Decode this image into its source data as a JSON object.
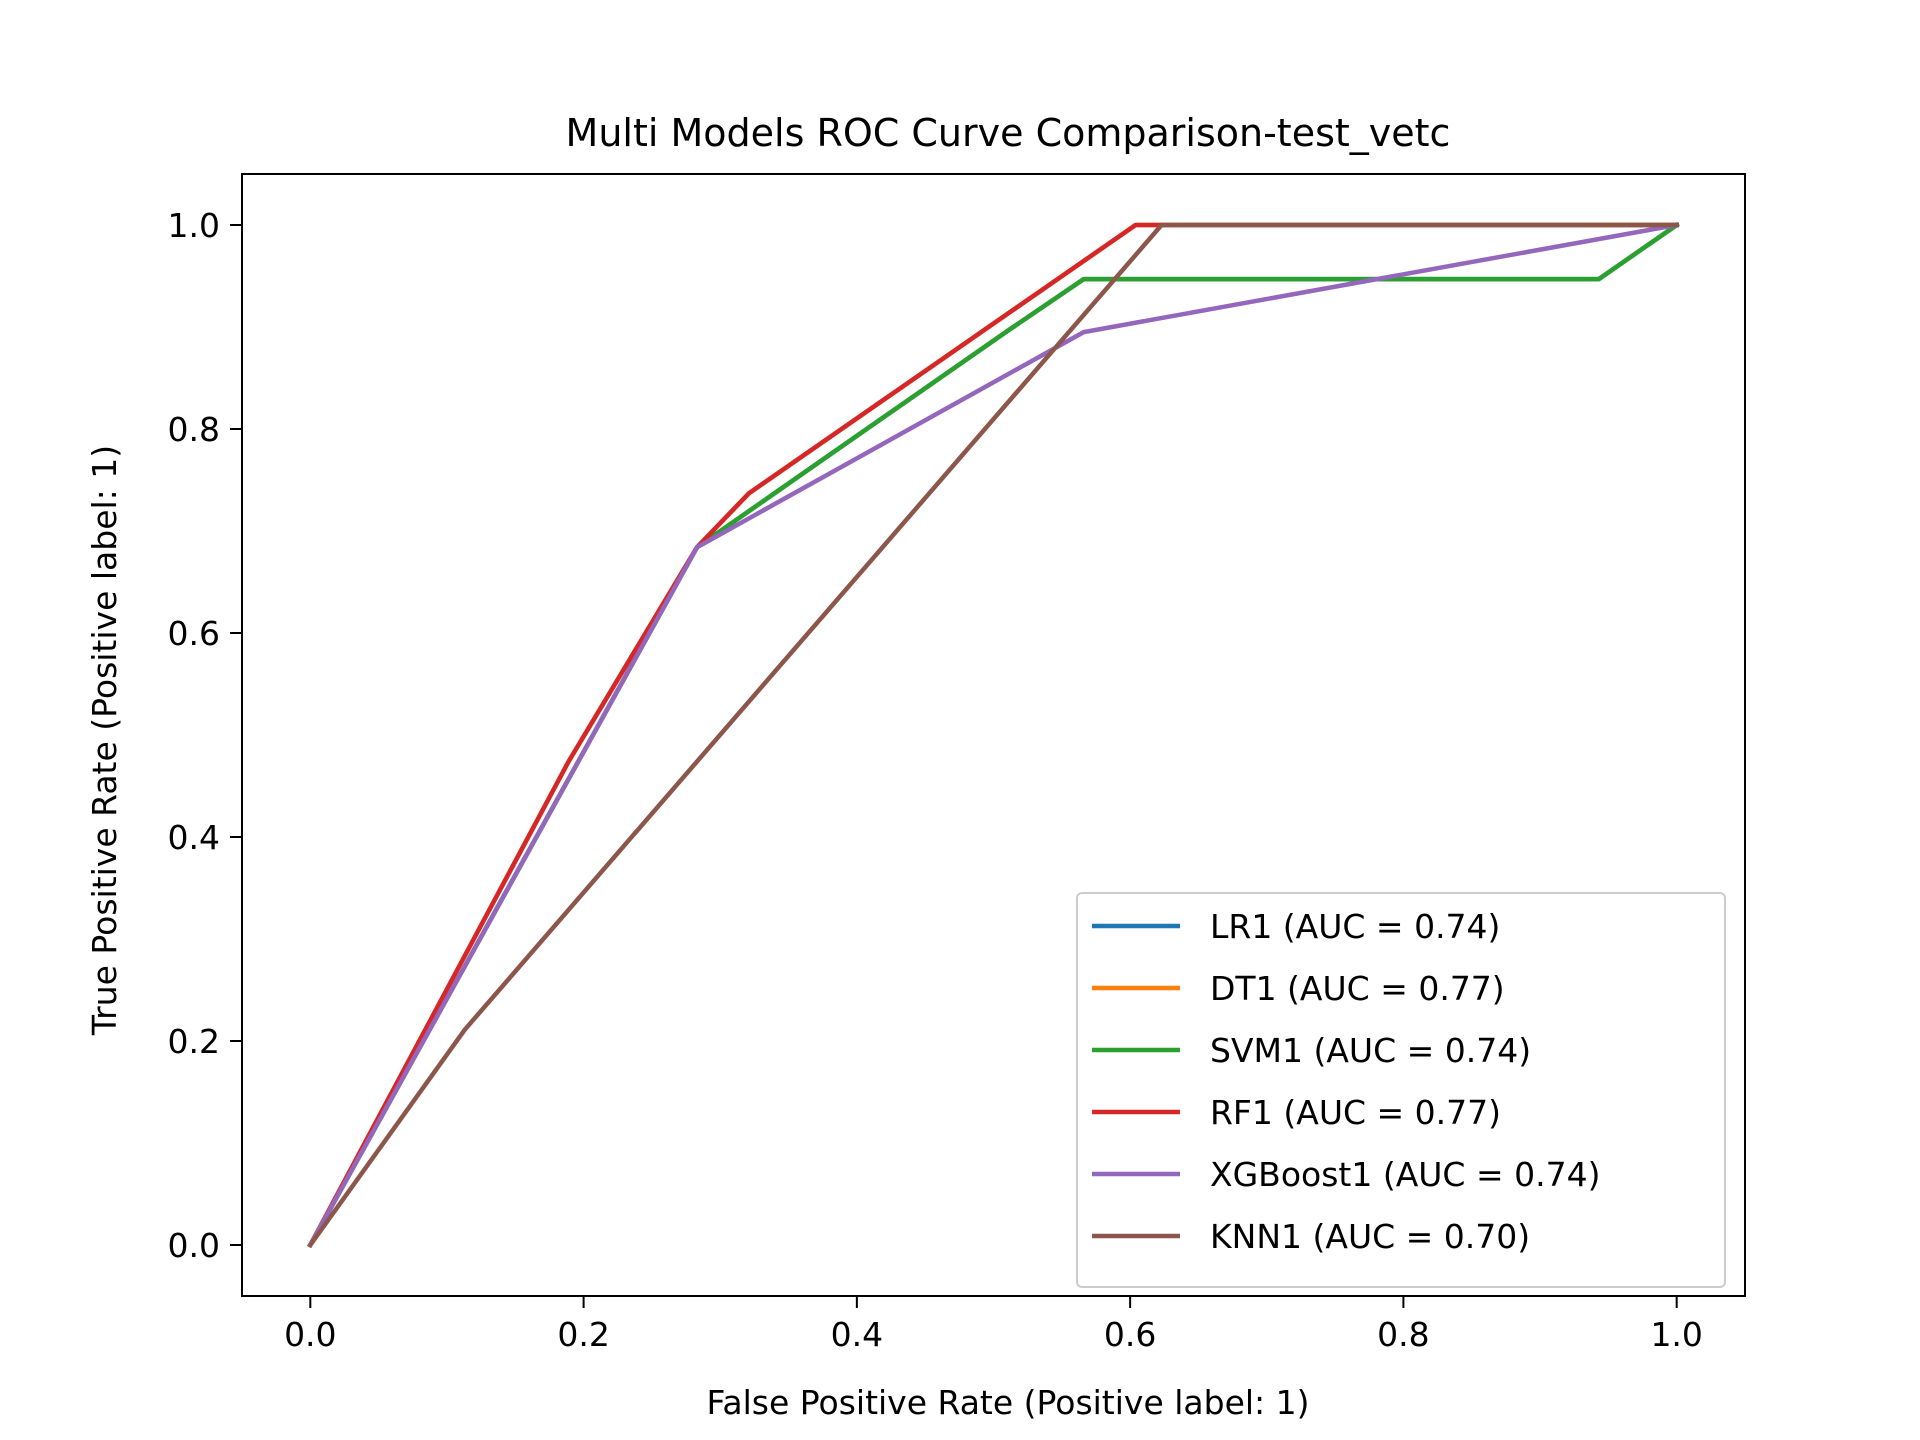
{
  "chart_data": {
    "type": "line",
    "title": "Multi Models ROC Curve Comparison-test_vetc",
    "xlabel": "False Positive Rate (Positive label: 1)",
    "ylabel": "True Positive Rate (Positive label: 1)",
    "xlim": [
      -0.05,
      1.05
    ],
    "ylim": [
      -0.05,
      1.05
    ],
    "xticks": [
      0.0,
      0.2,
      0.4,
      0.6,
      0.8,
      1.0
    ],
    "xtick_labels": [
      "0.0",
      "0.2",
      "0.4",
      "0.6",
      "0.8",
      "1.0"
    ],
    "yticks": [
      0.0,
      0.2,
      0.4,
      0.6,
      0.8,
      1.0
    ],
    "ytick_labels": [
      "0.0",
      "0.2",
      "0.4",
      "0.6",
      "0.8",
      "1.0"
    ],
    "grid": false,
    "legend_position": "lower-right",
    "series": [
      {
        "name": "LR1 (AUC = 0.74)",
        "color": "#1f77b4",
        "x": [
          0.0,
          0.283,
          0.509,
          0.566,
          0.943,
          1.0
        ],
        "y": [
          0.0,
          0.684,
          0.895,
          0.947,
          0.947,
          1.0
        ]
      },
      {
        "name": "DT1 (AUC = 0.77)",
        "color": "#ff7f0e",
        "x": [
          0.0,
          0.189,
          0.283,
          0.321,
          0.604,
          1.0
        ],
        "y": [
          0.0,
          0.474,
          0.684,
          0.737,
          1.0,
          1.0
        ]
      },
      {
        "name": "SVM1 (AUC = 0.74)",
        "color": "#2ca02c",
        "x": [
          0.0,
          0.283,
          0.509,
          0.566,
          0.943,
          1.0
        ],
        "y": [
          0.0,
          0.684,
          0.895,
          0.947,
          0.947,
          1.0
        ]
      },
      {
        "name": "RF1 (AUC = 0.77)",
        "color": "#d62728",
        "x": [
          0.0,
          0.189,
          0.283,
          0.321,
          0.604,
          1.0
        ],
        "y": [
          0.0,
          0.474,
          0.684,
          0.737,
          1.0,
          1.0
        ]
      },
      {
        "name": "XGBoost1 (AUC = 0.74)",
        "color": "#9467bd",
        "x": [
          0.0,
          0.283,
          0.566,
          1.0
        ],
        "y": [
          0.0,
          0.684,
          0.895,
          1.0
        ]
      },
      {
        "name": "KNN1 (AUC = 0.70)",
        "color": "#8c564b",
        "x": [
          0.0,
          0.113,
          0.623,
          1.0
        ],
        "y": [
          0.0,
          0.211,
          1.0,
          1.0
        ]
      }
    ]
  }
}
